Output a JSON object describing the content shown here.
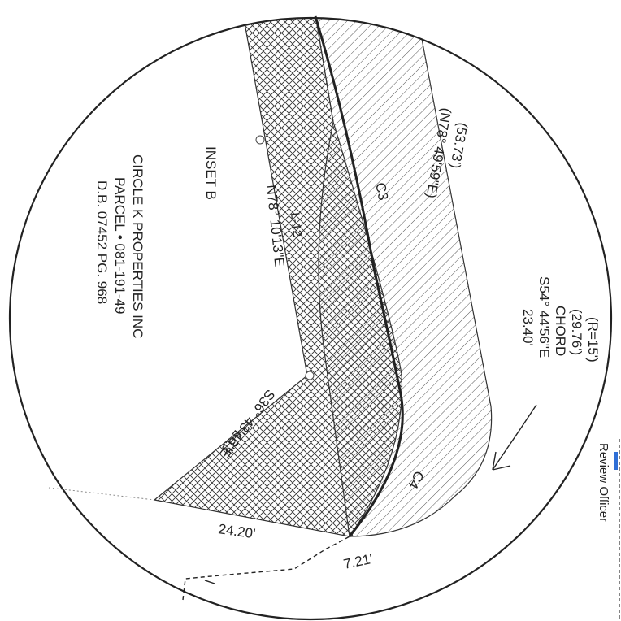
{
  "inset_title": "INSET B",
  "owner": {
    "line1": "CIRCLE K PROPERTIES INC",
    "line2": "PARCEL • 081-191-49",
    "line3": "D.B. 07452 PG. 968"
  },
  "callouts": {
    "record_distance": "(53.73')",
    "record_bearing": "(N78° 49'59\"E)",
    "curve_radius": "(R=15')",
    "curve_length": "(29.76')",
    "chord_word": "CHORD",
    "chord_bearing": "S54° 44'56\"E",
    "chord_length": "23.40'"
  },
  "lines": {
    "bearing_north": "N78° 10'13\"E",
    "label_l_north": "L-12",
    "bearing_south": "S36° 43'46\"E",
    "label_l_south": "L-13",
    "curve_c3": "C3",
    "curve_c4": "C4",
    "dist_bottom_left": "24.20'",
    "dist_bottom_right": "7.21'"
  },
  "sidebar": {
    "label": "Review Officer"
  },
  "colors": {
    "ink": "#222222",
    "accent": "#2f6fd6"
  }
}
